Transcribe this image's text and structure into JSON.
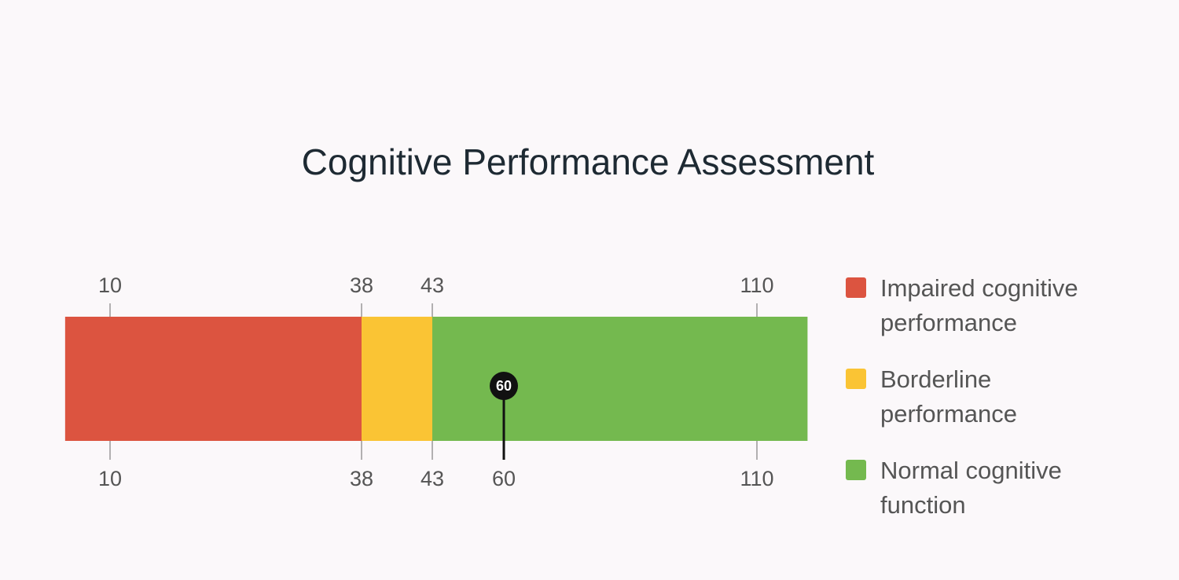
{
  "chart_data": {
    "type": "range-gauge",
    "title": "Cognitive Performance Assessment",
    "xlim": [
      5,
      120
    ],
    "top_ticks": [
      10,
      38,
      43,
      110
    ],
    "xticks": [
      10,
      38,
      43,
      60,
      110
    ],
    "series": [
      {
        "name": "Impaired cognitive performance",
        "color": "#dc5440",
        "range": [
          5,
          38
        ]
      },
      {
        "name": "Borderline performance",
        "color": "#fac434",
        "range": [
          38,
          43
        ]
      },
      {
        "name": "Normal cognitive function",
        "color": "#74b94f",
        "range": [
          43,
          120
        ]
      }
    ],
    "marker": {
      "value": 60,
      "color": "#111111"
    },
    "legend": "right"
  }
}
